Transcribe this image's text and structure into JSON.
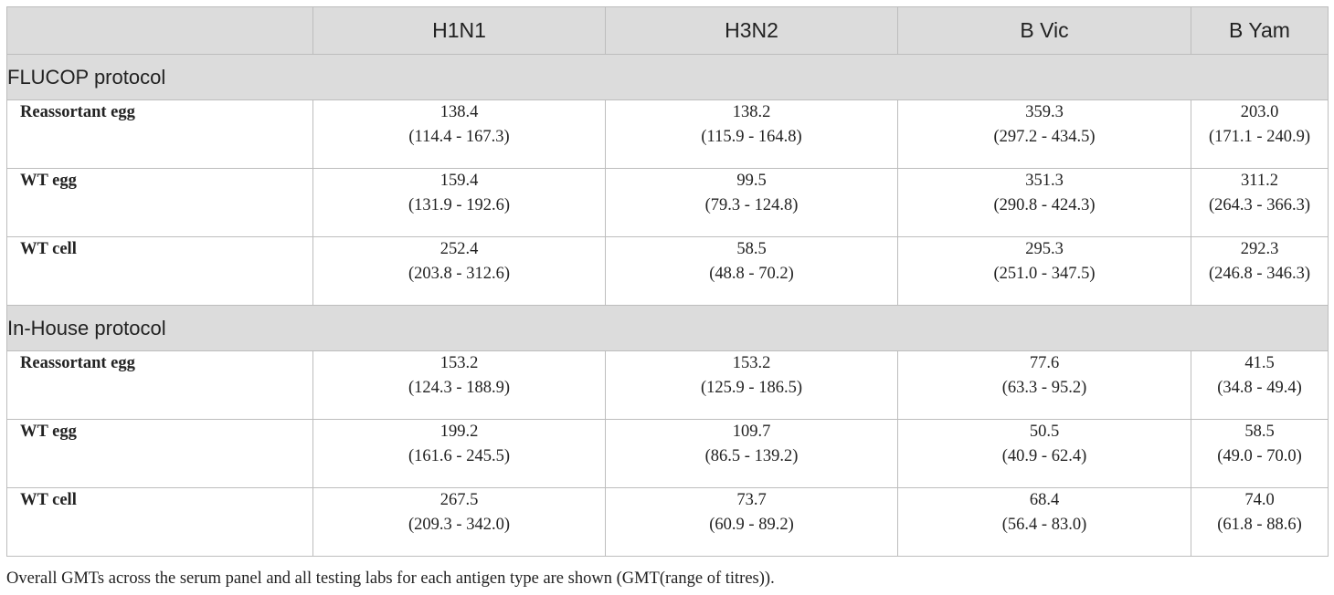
{
  "table": {
    "header": {
      "corner": "",
      "columns": [
        "H1N1",
        "H3N2",
        "B Vic",
        "B Yam"
      ]
    },
    "sections": [
      {
        "title": "FLUCOP protocol",
        "rows": [
          {
            "label": "Reassortant egg",
            "values": [
              "138.4",
              "138.2",
              "359.3",
              "203.0"
            ],
            "ranges": [
              "(114.4 - 167.3)",
              "(115.9 - 164.8)",
              "(297.2 - 434.5)",
              "(171.1 - 240.9)"
            ]
          },
          {
            "label": "WT egg",
            "values": [
              "159.4",
              "99.5",
              "351.3",
              "311.2"
            ],
            "ranges": [
              "(131.9 - 192.6)",
              "(79.3 - 124.8)",
              "(290.8 - 424.3)",
              "(264.3 - 366.3)"
            ]
          },
          {
            "label": "WT cell",
            "values": [
              "252.4",
              "58.5",
              "295.3",
              "292.3"
            ],
            "ranges": [
              "(203.8 - 312.6)",
              "(48.8 - 70.2)",
              "(251.0 - 347.5)",
              "(246.8 - 346.3)"
            ]
          }
        ]
      },
      {
        "title": "In-House protocol",
        "rows": [
          {
            "label": "Reassortant egg",
            "values": [
              "153.2",
              "153.2",
              "77.6",
              "41.5"
            ],
            "ranges": [
              "(124.3 - 188.9)",
              "(125.9 - 186.5)",
              "(63.3 - 95.2)",
              "(34.8 - 49.4)"
            ]
          },
          {
            "label": "WT egg",
            "values": [
              "199.2",
              "109.7",
              "50.5",
              "58.5"
            ],
            "ranges": [
              "(161.6 - 245.5)",
              "(86.5 - 139.2)",
              "(40.9 - 62.4)",
              "(49.0 - 70.0)"
            ]
          },
          {
            "label": "WT cell",
            "values": [
              "267.5",
              "73.7",
              "68.4",
              "74.0"
            ],
            "ranges": [
              "(209.3 - 342.0)",
              "(60.9 - 89.2)",
              "(56.4 - 83.0)",
              "(61.8 - 88.6)"
            ]
          }
        ]
      }
    ]
  },
  "caption": "Overall GMTs across the serum panel and all testing labs for each antigen type are shown (GMT(range of titres)).",
  "colors": {
    "header_bg": "#dcdcdc",
    "border": "#bdbdbd",
    "text": "#222222"
  }
}
